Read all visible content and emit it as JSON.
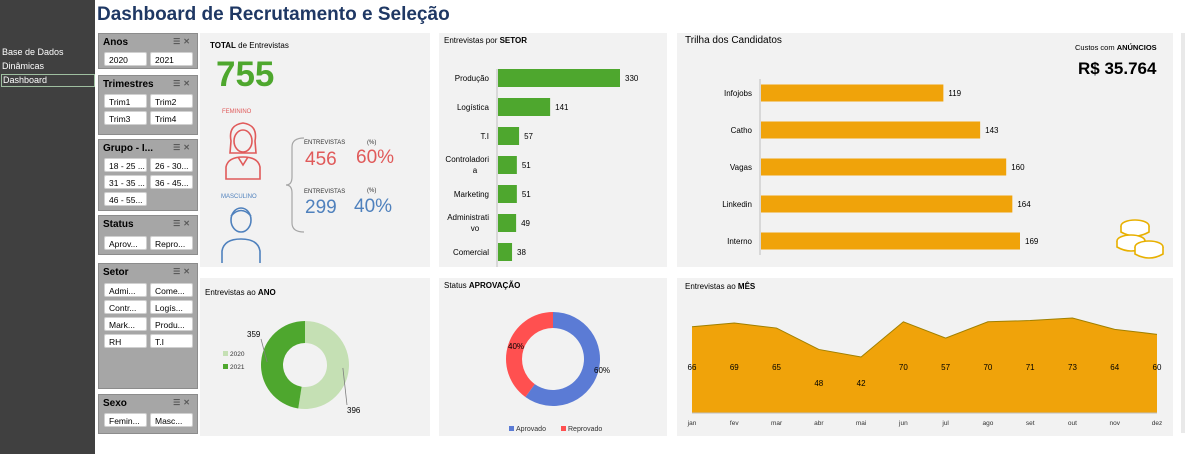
{
  "title": "Dashboard de Recrutamento e Seleção",
  "nav": {
    "items": [
      "Base de Dados",
      "Dinâmicas",
      "Dashboard"
    ],
    "active": "Dashboard"
  },
  "slicers": [
    {
      "name": "Anos",
      "items": [
        "2020",
        "2021"
      ]
    },
    {
      "name": "Trimestres",
      "items": [
        "Trim1",
        "Trim2",
        "Trim3",
        "Trim4"
      ]
    },
    {
      "name": "Grupo - I...",
      "items": [
        "18 - 25 ...",
        "26 - 30...",
        "31 - 35 ...",
        "36 - 45...",
        "46 - 55..."
      ]
    },
    {
      "name": "Status",
      "items": [
        "Aprov...",
        "Repro..."
      ]
    },
    {
      "name": "Setor",
      "items": [
        "Admi...",
        "Come...",
        "Contr...",
        "Logís...",
        "Mark...",
        "Produ...",
        "RH",
        "T.I"
      ]
    },
    {
      "name": "Sexo",
      "items": [
        "Femin...",
        "Masc..."
      ]
    }
  ],
  "total": {
    "title_bold": "TOTAL",
    "title_rest": " de Entrevistas",
    "value": "755",
    "female": {
      "label": "FEMININO",
      "col1": "ENTREVISTAS",
      "col2": "(%)",
      "count": "456",
      "pct": "60%"
    },
    "male": {
      "label": "MASCULINO",
      "col1": "ENTREVISTAS",
      "col2": "(%)",
      "count": "299",
      "pct": "40%"
    }
  },
  "sector_title": {
    "plain": "Entrevistas por ",
    "bold": "SETOR"
  },
  "candidates_title": "Trilha dos Candidatos",
  "costs": {
    "label_plain": "Custos com ",
    "label_bold": "ANÚNCIOS",
    "value": "R$ 35.764"
  },
  "year_title": {
    "plain": "Entrevistas ao ",
    "bold": "ANO"
  },
  "status_title": {
    "plain": "Status ",
    "bold": "APROVAÇÃO"
  },
  "month_title": {
    "plain": "Entrevistas ao ",
    "bold": "MÊS"
  },
  "colors": {
    "green": "#4ea72e",
    "light_green": "#c5e0b4",
    "orange": "#f0a30a",
    "red": "#ff5050",
    "blue": "#5b7bd5",
    "female": "#e05a5a",
    "male": "#4f81bd",
    "title": "#1f3864"
  },
  "chart_data": [
    {
      "type": "bar",
      "orientation": "horizontal",
      "categories": [
        "Produção",
        "Logística",
        "T.I",
        "Controladoria",
        "Marketing",
        "Administrativo",
        "Comercial"
      ],
      "values": [
        330,
        141,
        57,
        51,
        51,
        49,
        38
      ],
      "color": "#4ea72e"
    },
    {
      "type": "bar",
      "orientation": "horizontal",
      "categories": [
        "Infojobs",
        "Catho",
        "Vagas",
        "Linkedin",
        "Interno"
      ],
      "values": [
        119,
        143,
        160,
        164,
        169
      ],
      "color": "#f0a30a"
    },
    {
      "type": "pie",
      "donut": true,
      "categories": [
        "2020",
        "2021"
      ],
      "values": [
        396,
        359
      ],
      "colors": [
        "#c5e0b4",
        "#4ea72e"
      ],
      "legend": "left"
    },
    {
      "type": "pie",
      "donut": true,
      "categories": [
        "Aprovado",
        "Reprovado"
      ],
      "values": [
        60,
        40
      ],
      "labels": [
        "60%",
        "40%"
      ],
      "colors": [
        "#5b7bd5",
        "#ff5050"
      ],
      "legend": "bottom"
    },
    {
      "type": "area",
      "categories": [
        "jan",
        "fev",
        "mar",
        "abr",
        "mai",
        "jun",
        "jul",
        "ago",
        "set",
        "out",
        "nov",
        "dez"
      ],
      "values": [
        66,
        69,
        65,
        48,
        42,
        70,
        57,
        70,
        71,
        73,
        64,
        60
      ],
      "color": "#f0a30a"
    }
  ]
}
